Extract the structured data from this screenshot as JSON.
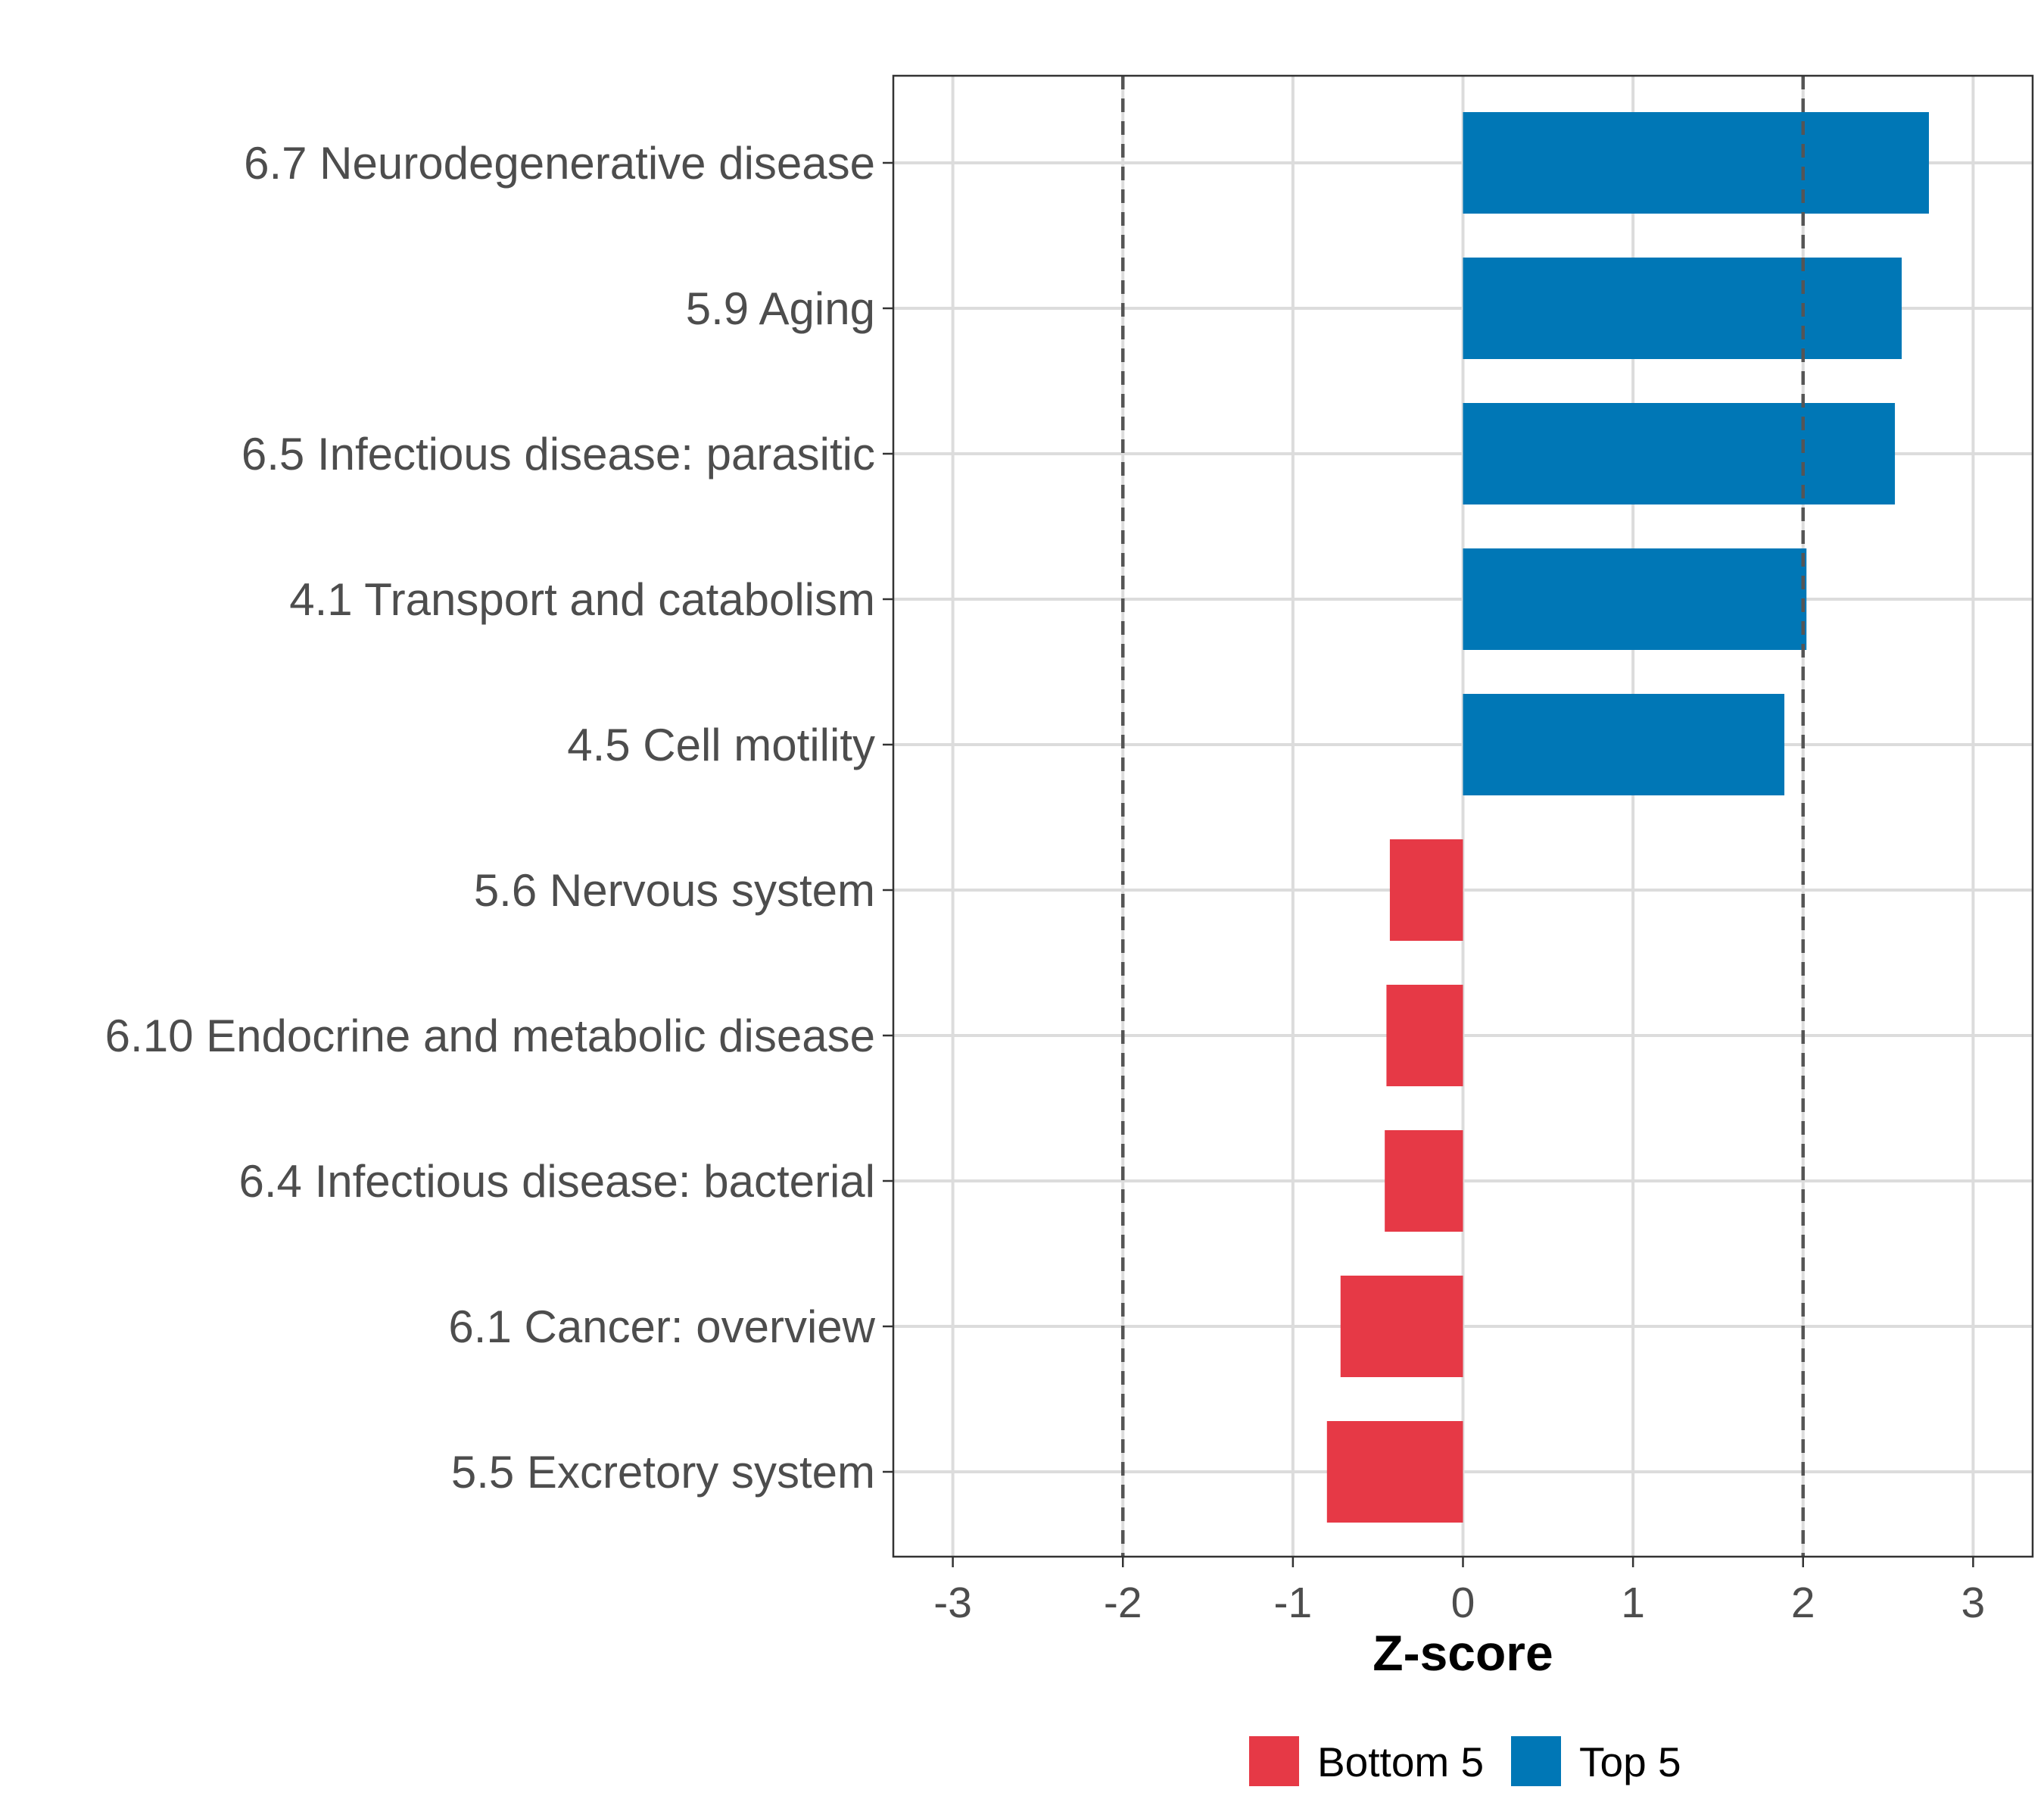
{
  "chart_data": {
    "type": "bar",
    "orientation": "horizontal",
    "title": "",
    "xlabel": "Z-score",
    "ylabel": "",
    "xlim": [
      -3.35,
      3.35
    ],
    "xticks": [
      -3,
      -2,
      -1,
      0,
      1,
      2,
      3
    ],
    "xtick_labels": [
      "-3",
      "-2",
      "-1",
      "0",
      "1",
      "2",
      "3"
    ],
    "reference_lines": [
      -2,
      2
    ],
    "grid": true,
    "categories": [
      "6.7 Neurodegenerative disease",
      "5.9 Aging",
      "6.5 Infectious disease: parasitic",
      "4.1 Transport and catabolism",
      "4.5 Cell motility",
      "5.6 Nervous system",
      "6.10 Endocrine and metabolic disease",
      "6.4 Infectious disease: bacterial",
      "6.1 Cancer: overview",
      "5.5 Excretory system"
    ],
    "values": [
      2.74,
      2.58,
      2.54,
      2.02,
      1.89,
      -0.43,
      -0.45,
      -0.46,
      -0.72,
      -0.8
    ],
    "groups": [
      "Top 5",
      "Top 5",
      "Top 5",
      "Top 5",
      "Top 5",
      "Bottom 5",
      "Bottom 5",
      "Bottom 5",
      "Bottom 5",
      "Bottom 5"
    ],
    "legend": {
      "position": "bottom",
      "entries": [
        {
          "label": "Bottom 5",
          "color": "#e63946"
        },
        {
          "label": "Top 5",
          "color": "#0077b6"
        }
      ]
    }
  }
}
